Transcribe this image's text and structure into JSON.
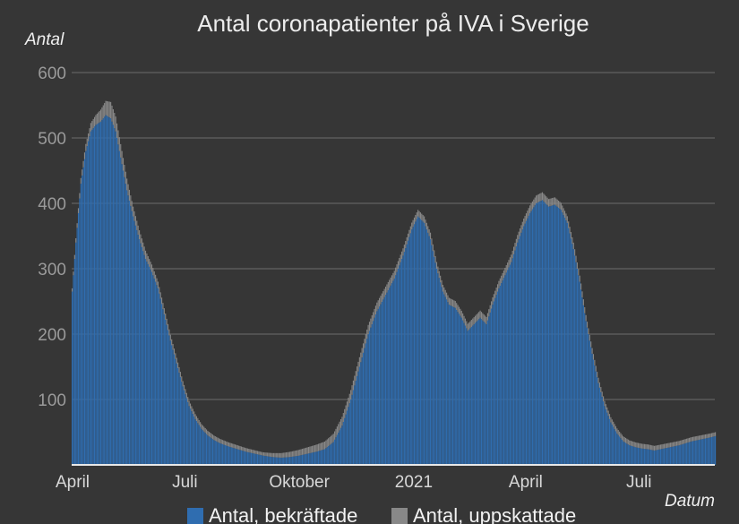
{
  "chart_data": {
    "type": "bar",
    "title": "Antal coronapatienter på IVA i Sverige",
    "ylabel": "Antal",
    "xlabel": "Datum",
    "ylim": [
      0,
      600
    ],
    "yticks": [
      100,
      200,
      300,
      400,
      500,
      600
    ],
    "x_range": [
      "2020-04-01",
      "2021-08-31"
    ],
    "xticks": [
      {
        "date": "2020-04-01",
        "label": "April"
      },
      {
        "date": "2020-07-01",
        "label": "Juli"
      },
      {
        "date": "2020-10-01",
        "label": "Oktober"
      },
      {
        "date": "2021-01-01",
        "label": "2021"
      },
      {
        "date": "2021-04-01",
        "label": "April"
      },
      {
        "date": "2021-07-01",
        "label": "Juli"
      }
    ],
    "grid": true,
    "legend_position": "bottom",
    "series": [
      {
        "name": "Antal, bekräftade",
        "color": "#2f6db0",
        "points": [
          [
            "2020-04-01",
            265
          ],
          [
            "2020-04-04",
            340
          ],
          [
            "2020-04-08",
            430
          ],
          [
            "2020-04-12",
            480
          ],
          [
            "2020-04-16",
            510
          ],
          [
            "2020-04-20",
            520
          ],
          [
            "2020-04-24",
            525
          ],
          [
            "2020-04-28",
            535
          ],
          [
            "2020-05-02",
            530
          ],
          [
            "2020-05-06",
            510
          ],
          [
            "2020-05-10",
            470
          ],
          [
            "2020-05-15",
            420
          ],
          [
            "2020-05-20",
            380
          ],
          [
            "2020-05-25",
            345
          ],
          [
            "2020-05-30",
            315
          ],
          [
            "2020-06-04",
            295
          ],
          [
            "2020-06-09",
            270
          ],
          [
            "2020-06-14",
            230
          ],
          [
            "2020-06-19",
            190
          ],
          [
            "2020-06-24",
            155
          ],
          [
            "2020-06-29",
            120
          ],
          [
            "2020-07-04",
            90
          ],
          [
            "2020-07-09",
            70
          ],
          [
            "2020-07-14",
            55
          ],
          [
            "2020-07-19",
            45
          ],
          [
            "2020-07-24",
            38
          ],
          [
            "2020-07-29",
            33
          ],
          [
            "2020-08-05",
            28
          ],
          [
            "2020-08-12",
            24
          ],
          [
            "2020-08-19",
            20
          ],
          [
            "2020-08-26",
            17
          ],
          [
            "2020-09-02",
            14
          ],
          [
            "2020-09-09",
            12
          ],
          [
            "2020-09-16",
            11
          ],
          [
            "2020-09-23",
            12
          ],
          [
            "2020-09-30",
            14
          ],
          [
            "2020-10-07",
            17
          ],
          [
            "2020-10-14",
            20
          ],
          [
            "2020-10-21",
            24
          ],
          [
            "2020-10-28",
            35
          ],
          [
            "2020-11-04",
            60
          ],
          [
            "2020-11-11",
            100
          ],
          [
            "2020-11-18",
            150
          ],
          [
            "2020-11-25",
            200
          ],
          [
            "2020-12-02",
            235
          ],
          [
            "2020-12-09",
            260
          ],
          [
            "2020-12-16",
            285
          ],
          [
            "2020-12-23",
            320
          ],
          [
            "2020-12-30",
            360
          ],
          [
            "2021-01-04",
            380
          ],
          [
            "2021-01-09",
            370
          ],
          [
            "2021-01-14",
            345
          ],
          [
            "2021-01-19",
            300
          ],
          [
            "2021-01-24",
            265
          ],
          [
            "2021-01-29",
            245
          ],
          [
            "2021-02-03",
            240
          ],
          [
            "2021-02-08",
            225
          ],
          [
            "2021-02-13",
            205
          ],
          [
            "2021-02-18",
            215
          ],
          [
            "2021-02-23",
            225
          ],
          [
            "2021-02-28",
            215
          ],
          [
            "2021-03-05",
            245
          ],
          [
            "2021-03-10",
            270
          ],
          [
            "2021-03-15",
            290
          ],
          [
            "2021-03-20",
            310
          ],
          [
            "2021-03-25",
            340
          ],
          [
            "2021-03-30",
            365
          ],
          [
            "2021-04-04",
            385
          ],
          [
            "2021-04-09",
            400
          ],
          [
            "2021-04-14",
            405
          ],
          [
            "2021-04-19",
            395
          ],
          [
            "2021-04-24",
            398
          ],
          [
            "2021-04-29",
            390
          ],
          [
            "2021-05-04",
            370
          ],
          [
            "2021-05-09",
            330
          ],
          [
            "2021-05-14",
            280
          ],
          [
            "2021-05-19",
            220
          ],
          [
            "2021-05-24",
            170
          ],
          [
            "2021-05-29",
            125
          ],
          [
            "2021-06-03",
            90
          ],
          [
            "2021-06-08",
            65
          ],
          [
            "2021-06-13",
            48
          ],
          [
            "2021-06-18",
            36
          ],
          [
            "2021-06-23",
            30
          ],
          [
            "2021-06-28",
            27
          ],
          [
            "2021-07-03",
            25
          ],
          [
            "2021-07-08",
            24
          ],
          [
            "2021-07-13",
            22
          ],
          [
            "2021-07-18",
            24
          ],
          [
            "2021-07-23",
            26
          ],
          [
            "2021-07-28",
            28
          ],
          [
            "2021-08-02",
            30
          ],
          [
            "2021-08-07",
            33
          ],
          [
            "2021-08-12",
            36
          ],
          [
            "2021-08-17",
            38
          ],
          [
            "2021-08-22",
            40
          ],
          [
            "2021-08-27",
            42
          ],
          [
            "2021-08-31",
            44
          ]
        ]
      },
      {
        "name": "Antal, uppskattade",
        "color": "#888888",
        "points": [
          [
            "2020-04-01",
            5
          ],
          [
            "2020-04-20",
            15
          ],
          [
            "2020-05-02",
            25
          ],
          [
            "2020-05-20",
            15
          ],
          [
            "2020-06-10",
            10
          ],
          [
            "2020-07-01",
            8
          ],
          [
            "2020-09-01",
            5
          ],
          [
            "2020-11-15",
            15
          ],
          [
            "2021-01-04",
            10
          ],
          [
            "2021-04-14",
            12
          ],
          [
            "2021-06-01",
            8
          ],
          [
            "2021-08-31",
            6
          ]
        ]
      }
    ]
  }
}
